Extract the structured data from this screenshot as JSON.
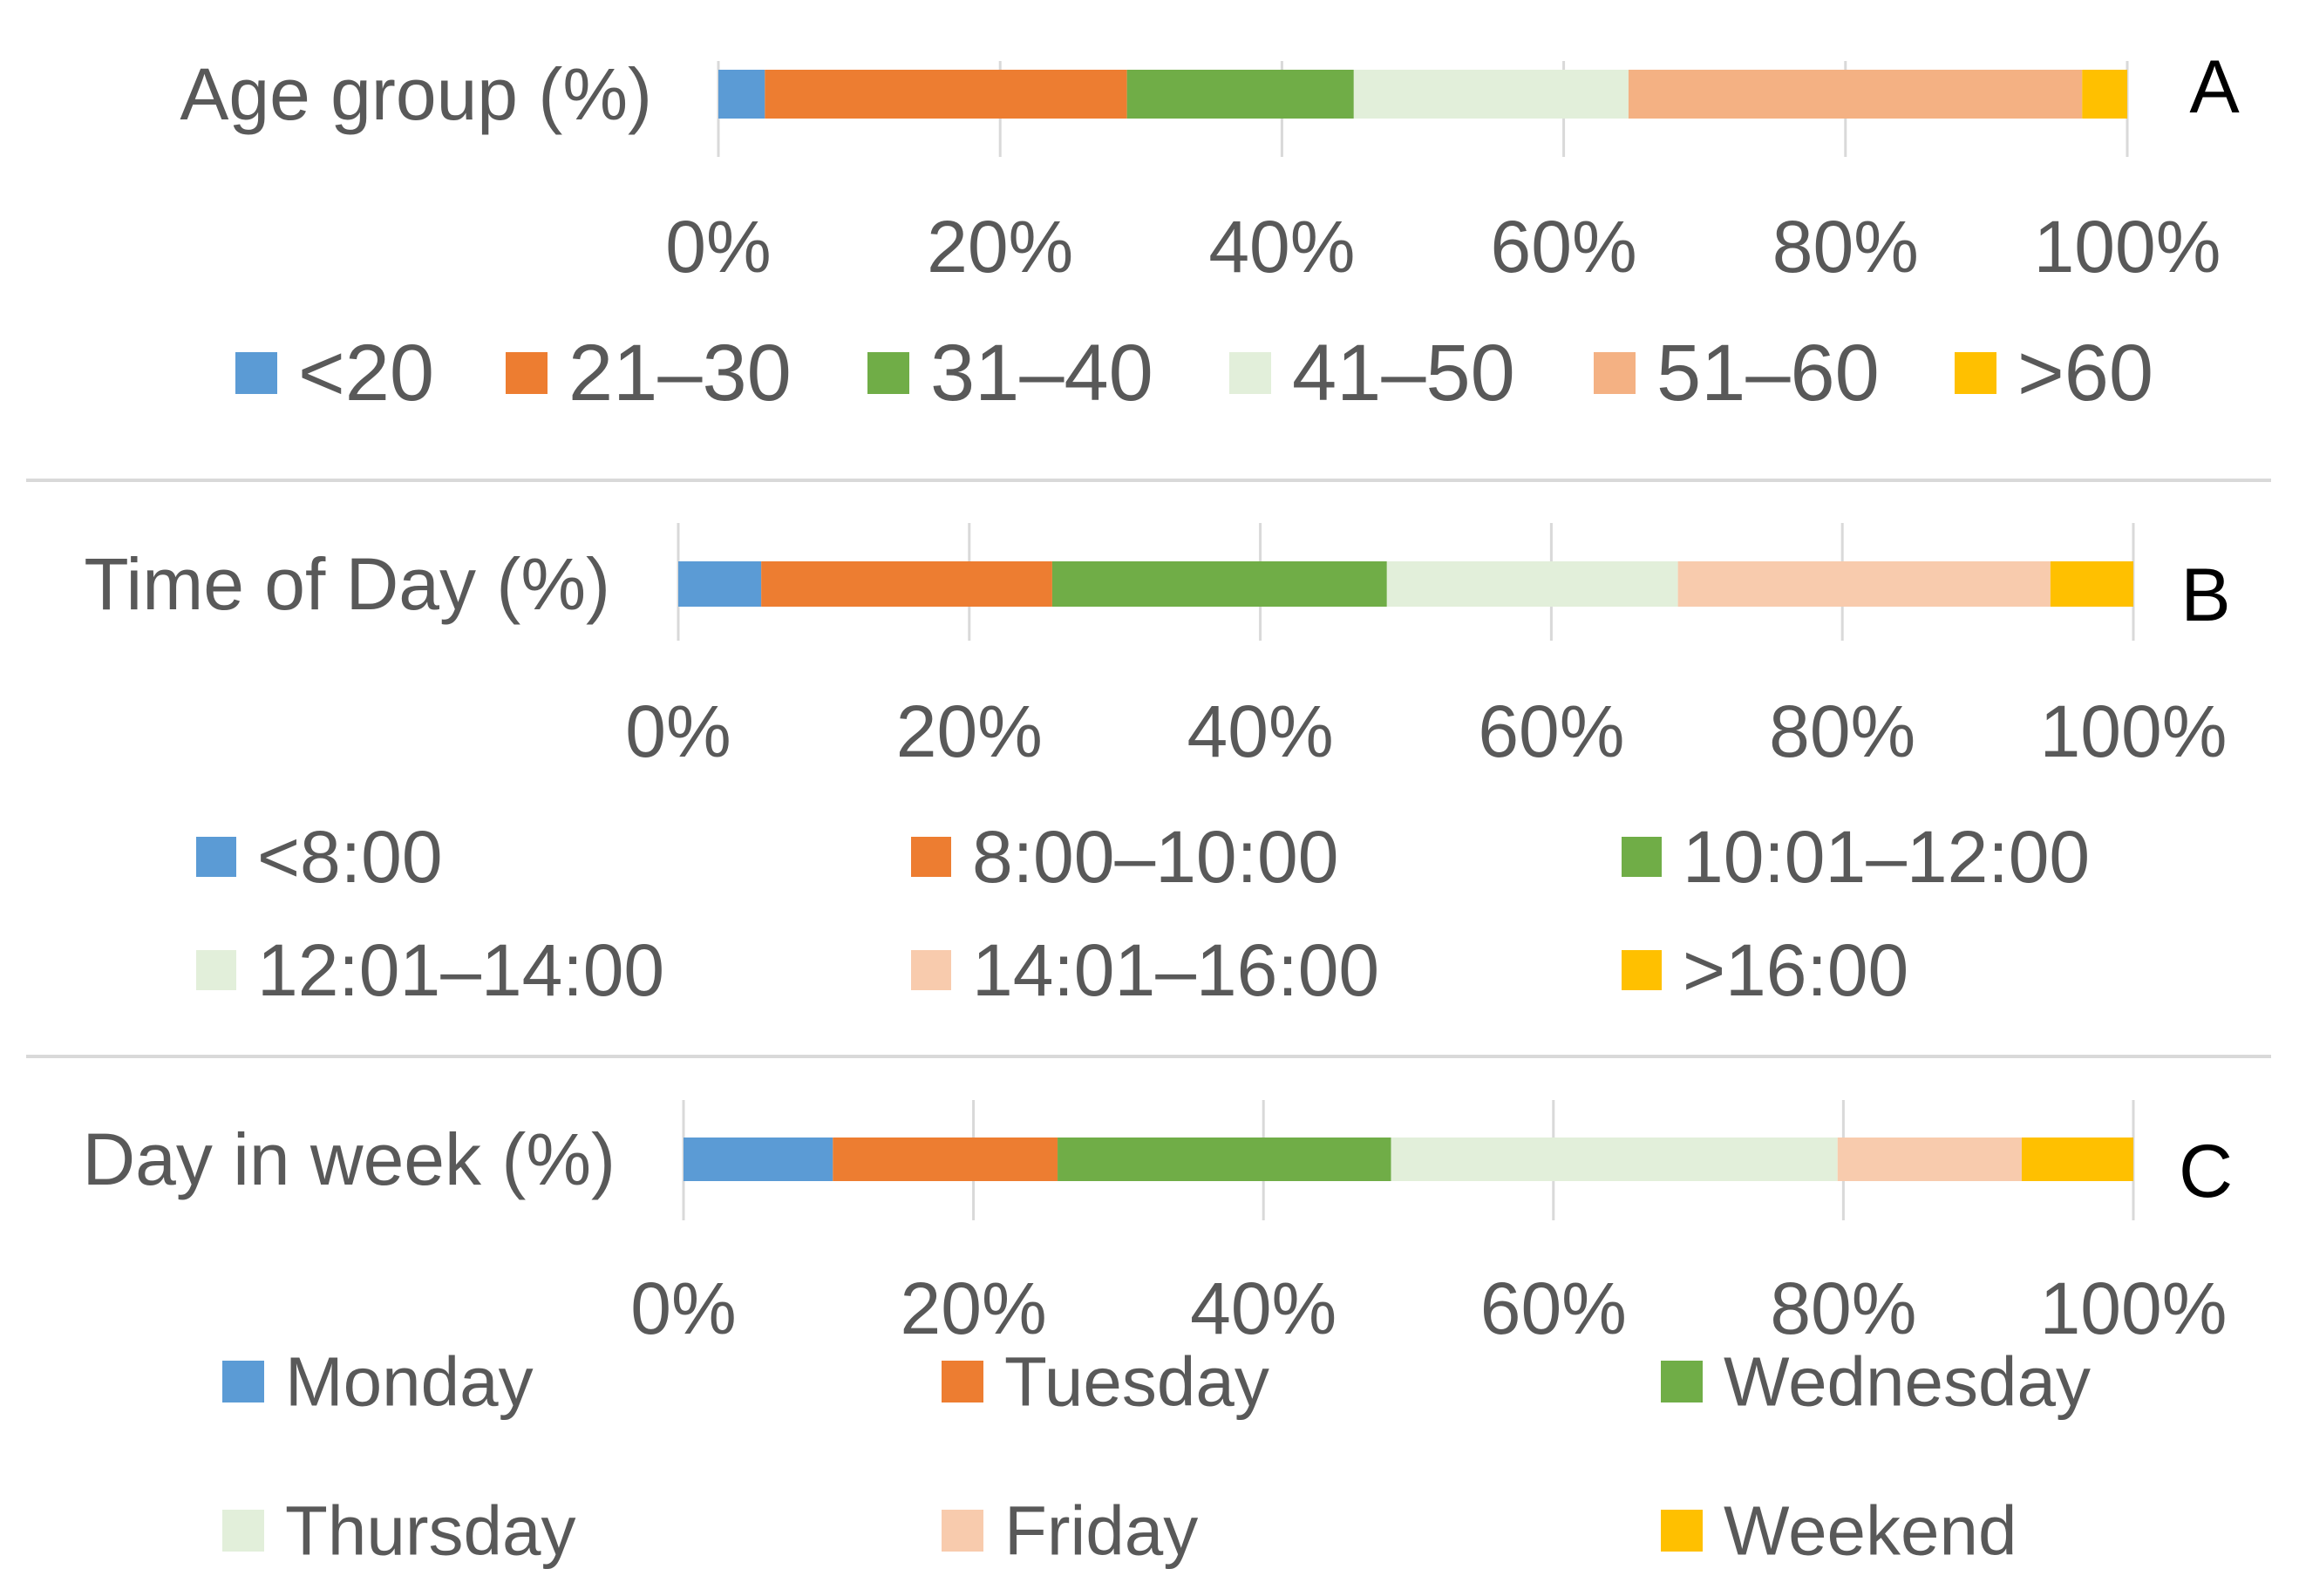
{
  "chart_data": [
    {
      "type": "bar",
      "orientation": "horizontal",
      "stacked": "percent",
      "panel": "A",
      "categories": [
        "Age group (%)"
      ],
      "xlim": [
        0,
        100
      ],
      "x_ticks": [
        "0%",
        "20%",
        "40%",
        "60%",
        "80%",
        "100%"
      ],
      "grid": true,
      "legend_position": "bottom",
      "series": [
        {
          "name": "<20",
          "values": [
            3.3
          ],
          "color": "#5B9BD5"
        },
        {
          "name": "21–30",
          "values": [
            25.7
          ],
          "color": "#ED7D31"
        },
        {
          "name": "31–40",
          "values": [
            16.1
          ],
          "color": "#70AD47"
        },
        {
          "name": "41–50",
          "values": [
            19.5
          ],
          "color": "#E2EFDA"
        },
        {
          "name": "51–60",
          "values": [
            32.2
          ],
          "color": "#F4B183"
        },
        {
          "name": ">60",
          "values": [
            3.2
          ],
          "color": "#FFC000"
        }
      ]
    },
    {
      "type": "bar",
      "orientation": "horizontal",
      "stacked": "percent",
      "panel": "B",
      "categories": [
        "Time of Day (%)"
      ],
      "xlim": [
        0,
        100
      ],
      "x_ticks": [
        "0%",
        "20%",
        "40%",
        "60%",
        "80%",
        "100%"
      ],
      "grid": true,
      "legend_position": "bottom",
      "series": [
        {
          "name": "<8:00",
          "values": [
            5.7
          ],
          "color": "#5B9BD5"
        },
        {
          "name": "8:00–10:00",
          "values": [
            20.0
          ],
          "color": "#ED7D31"
        },
        {
          "name": "10:01–12:00",
          "values": [
            23.0
          ],
          "color": "#70AD47"
        },
        {
          "name": "12:01–14:00",
          "values": [
            20.0
          ],
          "color": "#E2EFDA"
        },
        {
          "name": "14:01–16:00",
          "values": [
            25.6
          ],
          "color": "#F8CBAD"
        },
        {
          "name": ">16:00",
          "values": [
            5.7
          ],
          "color": "#FFC000"
        }
      ]
    },
    {
      "type": "bar",
      "orientation": "horizontal",
      "stacked": "percent",
      "panel": "C",
      "categories": [
        "Day in week (%)"
      ],
      "xlim": [
        0,
        100
      ],
      "x_ticks": [
        "0%",
        "20%",
        "40%",
        "60%",
        "80%",
        "100%"
      ],
      "grid": true,
      "legend_position": "bottom",
      "series": [
        {
          "name": "Monday",
          "values": [
            10.3
          ],
          "color": "#5B9BD5"
        },
        {
          "name": "Tuesday",
          "values": [
            15.5
          ],
          "color": "#ED7D31"
        },
        {
          "name": "Wednesday",
          "values": [
            23.0
          ],
          "color": "#70AD47"
        },
        {
          "name": "Thursday",
          "values": [
            30.8
          ],
          "color": "#E2EFDA"
        },
        {
          "name": "Friday",
          "values": [
            12.7
          ],
          "color": "#F8CBAD"
        },
        {
          "name": "Weekend",
          "values": [
            7.7
          ],
          "color": "#FFC000"
        }
      ]
    }
  ]
}
